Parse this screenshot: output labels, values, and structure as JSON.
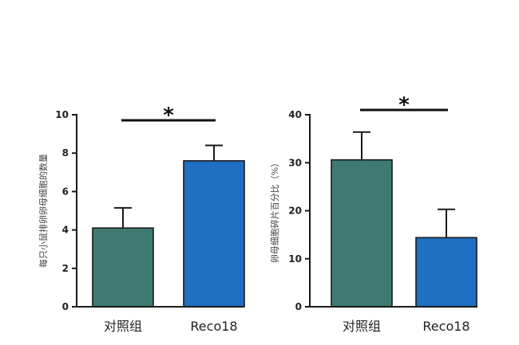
{
  "chart_data": [
    {
      "type": "bar",
      "categories": [
        "对照组",
        "Reco18"
      ],
      "values": [
        4.1,
        7.6
      ],
      "errors": [
        1.05,
        0.8
      ],
      "ylabel": "每只小鼠排卵卵母细胞的数量",
      "ylim": [
        0,
        10
      ],
      "yticks": [
        0,
        2,
        4,
        6,
        8,
        10
      ],
      "significance": "*",
      "colors": [
        "#3f7a72",
        "#1f6fc2"
      ]
    },
    {
      "type": "bar",
      "categories": [
        "对照组",
        "Reco18"
      ],
      "values": [
        30.6,
        14.4
      ],
      "errors": [
        5.8,
        5.9
      ],
      "ylabel": "卵母细胞碎片百分比（%）",
      "ylim": [
        0,
        40
      ],
      "yticks": [
        0,
        10,
        20,
        30,
        40
      ],
      "significance": "*",
      "colors": [
        "#3f7a72",
        "#1f6fc2"
      ]
    }
  ]
}
